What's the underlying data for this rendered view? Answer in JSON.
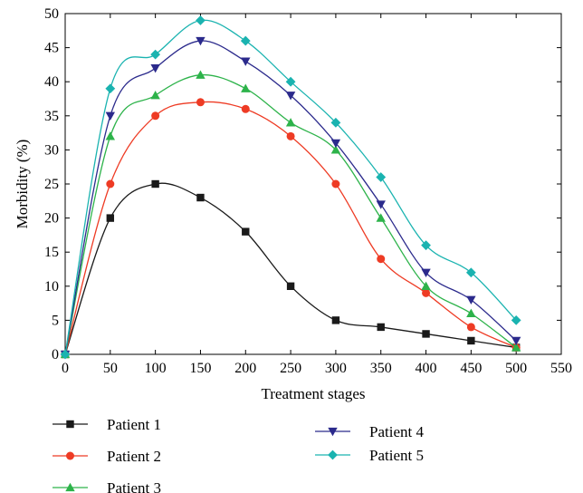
{
  "chart_data": {
    "type": "line",
    "xlabel": "Treatment stages",
    "ylabel": "Morbidity (%)",
    "xlim": [
      0,
      550
    ],
    "ylim": [
      0,
      50
    ],
    "xticks": [
      0,
      50,
      100,
      150,
      200,
      250,
      300,
      350,
      400,
      450,
      500,
      550
    ],
    "yticks": [
      0,
      5,
      10,
      15,
      20,
      25,
      30,
      35,
      40,
      45,
      50
    ],
    "grid": false,
    "smooth": true,
    "legend_position": "bottom",
    "x": [
      0,
      50,
      100,
      150,
      200,
      250,
      300,
      350,
      400,
      450,
      500
    ],
    "series": [
      {
        "name": "Patient 1",
        "color": "#1a1a1a",
        "marker": "square",
        "values": [
          0,
          20,
          25,
          23,
          18,
          10,
          5,
          4,
          3,
          2,
          1
        ]
      },
      {
        "name": "Patient 2",
        "color": "#ee3b24",
        "marker": "circle",
        "values": [
          0,
          25,
          35,
          37,
          36,
          32,
          25,
          14,
          9,
          4,
          1
        ]
      },
      {
        "name": "Patient 3",
        "color": "#2db34a",
        "marker": "triangle-up",
        "values": [
          0,
          32,
          38,
          41,
          39,
          34,
          30,
          20,
          10,
          6,
          1
        ]
      },
      {
        "name": "Patient 4",
        "color": "#2b2a8c",
        "marker": "triangle-down",
        "values": [
          0,
          35,
          42,
          46,
          43,
          38,
          31,
          22,
          12,
          8,
          2
        ]
      },
      {
        "name": "Patient 5",
        "color": "#1ab3b0",
        "marker": "diamond",
        "values": [
          0,
          39,
          44,
          49,
          46,
          40,
          34,
          26,
          16,
          12,
          5
        ]
      }
    ]
  }
}
